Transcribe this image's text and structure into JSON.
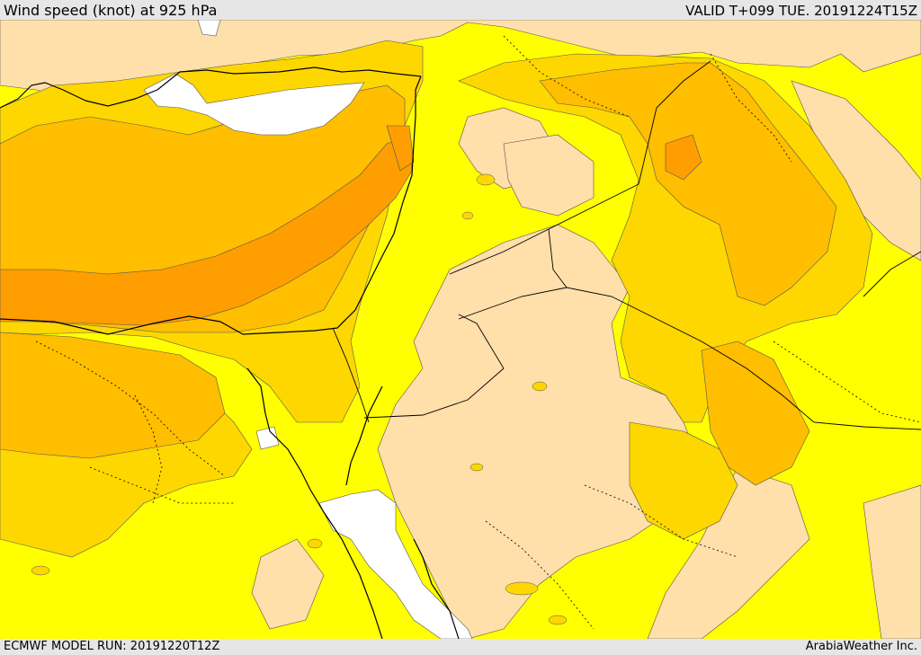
{
  "header": {
    "title": "Wind speed (knot) at 925 hPa",
    "valid": "VALID T+099 TUE. 20191224T15Z"
  },
  "footer": {
    "model_run": "ECMWF MODEL RUN: 20191220T12Z",
    "credit": "ArabiaWeather Inc."
  },
  "map": {
    "field": "wind speed 925 hPa",
    "colors": {
      "calm": "#ffffff",
      "light": "#ffdfaa",
      "moderate": "#ffff00",
      "fresh": "#ffd700",
      "strong": "#ffbe00",
      "very_strong": "#ff9e00",
      "coastline": "#000000",
      "border": "#000000"
    }
  }
}
